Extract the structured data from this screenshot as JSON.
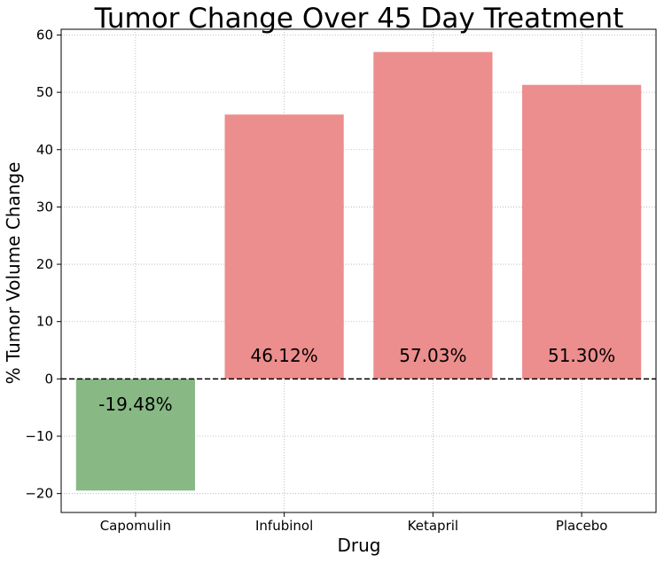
{
  "chart_data": {
    "type": "bar",
    "title": "Tumor Change Over 45 Day Treatment",
    "xlabel": "Drug",
    "ylabel": "% Tumor Volume Change",
    "categories": [
      "Capomulin",
      "Infubinol",
      "Ketapril",
      "Placebo"
    ],
    "values": [
      -19.48,
      46.12,
      57.03,
      51.3
    ],
    "data_labels": [
      "-19.48%",
      "46.12%",
      "57.03%",
      "51.30%"
    ],
    "ylim": [
      -23.3,
      61.0
    ],
    "yticks": [
      -20,
      -10,
      0,
      10,
      20,
      30,
      40,
      50,
      60
    ],
    "ytick_labels": [
      "−20",
      "−10",
      "0",
      "10",
      "20",
      "30",
      "40",
      "50",
      "60"
    ],
    "grid": true,
    "grid_style": "dotted",
    "zero_line": "dashed",
    "colors": {
      "positive": "#EC8E8D",
      "negative": "#88B985",
      "grid": "#b0b0b0",
      "zero_line": "#000000"
    }
  }
}
